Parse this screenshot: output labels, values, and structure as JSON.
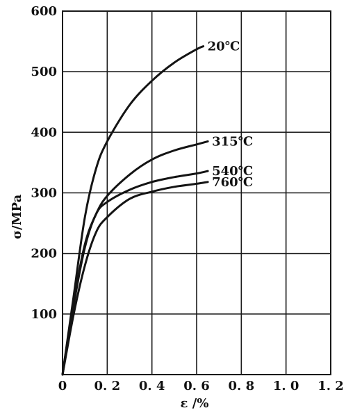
{
  "chart_data": {
    "type": "line",
    "xlabel": "ε /%",
    "ylabel": "σ/MPa",
    "xlim": [
      0,
      1.2
    ],
    "ylim": [
      0,
      600
    ],
    "xticks": [
      {
        "value": 0,
        "label": "0"
      },
      {
        "value": 0.2,
        "label": "0. 2"
      },
      {
        "value": 0.4,
        "label": "0. 4"
      },
      {
        "value": 0.6,
        "label": "0. 6"
      },
      {
        "value": 0.8,
        "label": "0. 8"
      },
      {
        "value": 1.0,
        "label": "1. 0"
      },
      {
        "value": 1.2,
        "label": "1. 2"
      }
    ],
    "yticks": [
      {
        "value": 100,
        "label": "100"
      },
      {
        "value": 200,
        "label": "200"
      },
      {
        "value": 300,
        "label": "300"
      },
      {
        "value": 400,
        "label": "400"
      },
      {
        "value": 500,
        "label": "500"
      },
      {
        "value": 600,
        "label": "600"
      }
    ],
    "grid": true,
    "series": [
      {
        "name": "20℃",
        "x": [
          0,
          0.05,
          0.1,
          0.15,
          0.2,
          0.3,
          0.4,
          0.5,
          0.6,
          0.63
        ],
        "y": [
          0,
          130,
          260,
          340,
          385,
          445,
          485,
          515,
          537,
          542
        ]
      },
      {
        "name": "315℃",
        "x": [
          0,
          0.05,
          0.1,
          0.15,
          0.2,
          0.3,
          0.4,
          0.5,
          0.6,
          0.65
        ],
        "y": [
          0,
          120,
          215,
          265,
          295,
          330,
          355,
          370,
          380,
          385
        ]
      },
      {
        "name": "540℃",
        "x": [
          0,
          0.05,
          0.1,
          0.15,
          0.2,
          0.3,
          0.4,
          0.5,
          0.6,
          0.65
        ],
        "y": [
          0,
          115,
          210,
          265,
          285,
          305,
          318,
          326,
          332,
          336
        ]
      },
      {
        "name": "760℃",
        "x": [
          0,
          0.05,
          0.1,
          0.15,
          0.2,
          0.3,
          0.4,
          0.5,
          0.6,
          0.65
        ],
        "y": [
          0,
          100,
          180,
          235,
          260,
          290,
          302,
          310,
          315,
          318
        ]
      }
    ]
  }
}
